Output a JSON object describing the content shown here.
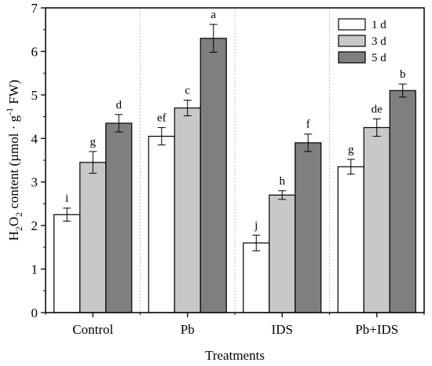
{
  "chart_data": {
    "type": "bar",
    "xlabel": "Treatments",
    "ylabel": {
      "parts": [
        "H",
        "2",
        "O",
        "2",
        " content  (µmol · g",
        "-1",
        " FW)"
      ]
    },
    "ylim": [
      0,
      7
    ],
    "yticks": [
      0,
      1,
      2,
      3,
      4,
      5,
      6,
      7
    ],
    "grid": false,
    "group_separators": true,
    "legend_position": "top-right",
    "categories": [
      "Control",
      "Pb",
      "IDS",
      "Pb+IDS"
    ],
    "series": [
      {
        "name": "1 d",
        "color": "#ffffff",
        "values": [
          2.25,
          4.05,
          1.6,
          3.35
        ],
        "errors": [
          0.15,
          0.2,
          0.18,
          0.17
        ],
        "letters": [
          "i",
          "ef",
          "j",
          "g"
        ]
      },
      {
        "name": "3 d",
        "color": "#c8c8c8",
        "values": [
          3.45,
          4.7,
          2.7,
          4.25
        ],
        "errors": [
          0.25,
          0.18,
          0.1,
          0.2
        ],
        "letters": [
          "g",
          "c",
          "h",
          "de"
        ]
      },
      {
        "name": "5 d",
        "color": "#7f7f7f",
        "values": [
          4.35,
          6.3,
          3.9,
          5.1
        ],
        "errors": [
          0.2,
          0.32,
          0.2,
          0.15
        ],
        "letters": [
          "d",
          "a",
          "f",
          "b"
        ]
      }
    ]
  }
}
